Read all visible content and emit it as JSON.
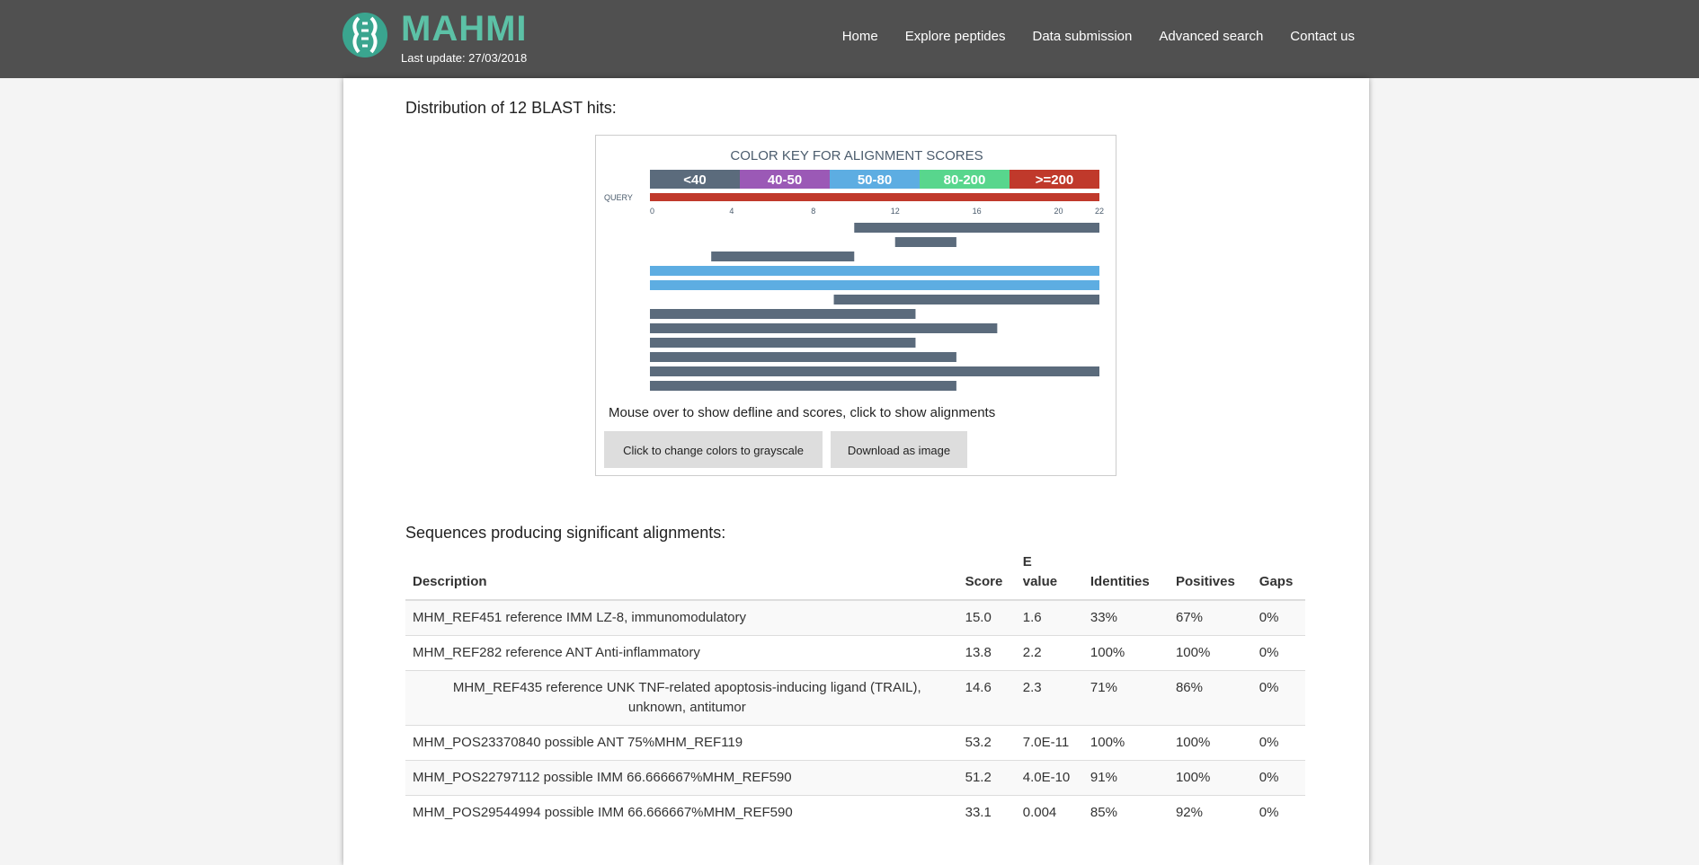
{
  "header": {
    "logo_title": "MAHMI",
    "last_update": "Last update: 27/03/2018",
    "nav": [
      "Home",
      "Explore peptides",
      "Data submission",
      "Advanced search",
      "Contact us"
    ]
  },
  "distribution": {
    "title": "Distribution of 12 BLAST hits:",
    "color_key_title": "COLOR KEY FOR ALIGNMENT SCORES",
    "color_key": [
      {
        "label": "<40",
        "color": "#5b6b7c"
      },
      {
        "label": "40-50",
        "color": "#9b59b6"
      },
      {
        "label": "50-80",
        "color": "#5dade2"
      },
      {
        "label": "80-200",
        "color": "#58d68d"
      },
      {
        "label": ">=200",
        "color": "#c0392b"
      }
    ],
    "query_label": "QUERY",
    "query_color": "#c0392b",
    "axis_ticks": [
      "0",
      "4",
      "8",
      "12",
      "16",
      "20",
      "22"
    ],
    "hits": [
      {
        "start": 10,
        "end": 22,
        "score_class": "<40"
      },
      {
        "start": 12,
        "end": 15,
        "score_class": "<40"
      },
      {
        "start": 3,
        "end": 10,
        "score_class": "<40"
      },
      {
        "start": 0,
        "end": 22,
        "score_class": "50-80"
      },
      {
        "start": 0,
        "end": 22,
        "score_class": "50-80"
      },
      {
        "start": 9,
        "end": 22,
        "score_class": "<40"
      },
      {
        "start": 0,
        "end": 13,
        "score_class": "<40"
      },
      {
        "start": 0,
        "end": 17,
        "score_class": "<40"
      },
      {
        "start": 0,
        "end": 13,
        "score_class": "<40"
      },
      {
        "start": 0,
        "end": 15,
        "score_class": "<40"
      },
      {
        "start": 0,
        "end": 22,
        "score_class": "<40"
      },
      {
        "start": 0,
        "end": 15,
        "score_class": "<40"
      }
    ],
    "mouse_note": "Mouse over to show defline and scores, click to show alignments",
    "btn_grayscale": "Click to change colors to grayscale",
    "btn_download": "Download as image"
  },
  "alignments": {
    "title": "Sequences producing significant alignments:",
    "columns": {
      "description": "Description",
      "score": "Score",
      "evalue_line1": "E",
      "evalue_line2": "value",
      "identities": "Identities",
      "positives": "Positives",
      "gaps": "Gaps"
    },
    "rows": [
      {
        "description": "MHM_REF451 reference IMM LZ-8, immunomodulatory",
        "score": "15.0",
        "evalue": "1.6",
        "identities": "33%",
        "positives": "67%",
        "gaps": "0%"
      },
      {
        "description": "MHM_REF282 reference ANT Anti-inflammatory",
        "score": "13.8",
        "evalue": "2.2",
        "identities": "100%",
        "positives": "100%",
        "gaps": "0%"
      },
      {
        "description": "MHM_REF435 reference UNK TNF-related apoptosis-inducing ligand (TRAIL), unknown, antitumor",
        "score": "14.6",
        "evalue": "2.3",
        "identities": "71%",
        "positives": "86%",
        "gaps": "0%"
      },
      {
        "description": "MHM_POS23370840 possible ANT 75%MHM_REF119",
        "score": "53.2",
        "evalue": "7.0E-11",
        "identities": "100%",
        "positives": "100%",
        "gaps": "0%"
      },
      {
        "description": "MHM_POS22797112 possible IMM 66.666667%MHM_REF590",
        "score": "51.2",
        "evalue": "4.0E-10",
        "identities": "91%",
        "positives": "100%",
        "gaps": "0%"
      },
      {
        "description": "MHM_POS29544994 possible IMM 66.666667%MHM_REF590",
        "score": "33.1",
        "evalue": "0.004",
        "identities": "85%",
        "positives": "92%",
        "gaps": "0%"
      }
    ]
  }
}
